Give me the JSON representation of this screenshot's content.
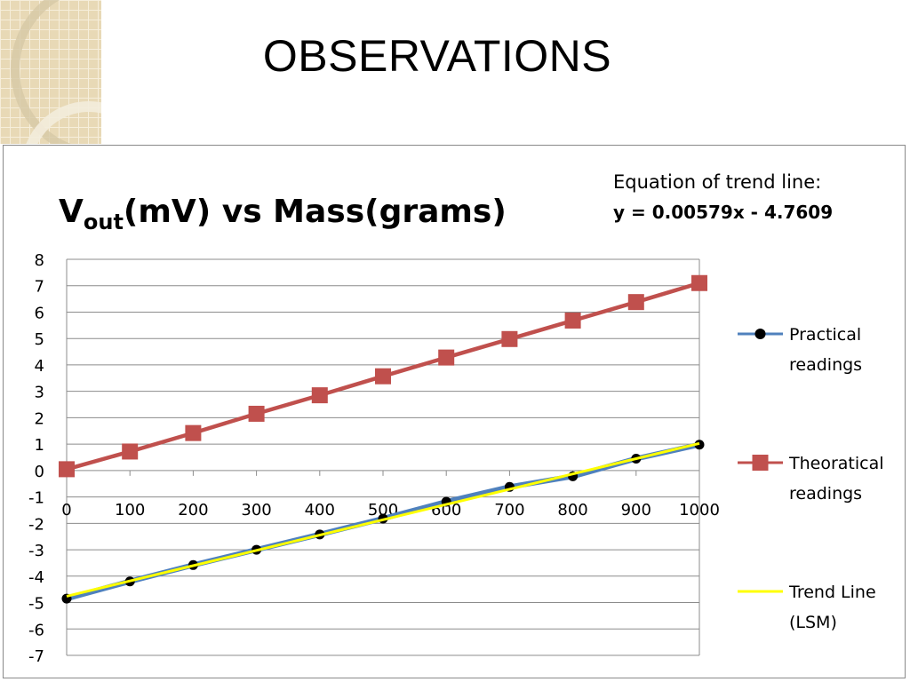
{
  "slide": {
    "title": "OBSERVATIONS"
  },
  "chart_data": {
    "type": "line",
    "title_main": "V",
    "title_sub": "out",
    "title_rest": "(mV)  vs  Mass(grams)",
    "equation": {
      "label": "Equation of trend line:",
      "formula": "y = 0.00579x - 4.7609"
    },
    "x": [
      0,
      100,
      200,
      300,
      400,
      500,
      600,
      700,
      800,
      900,
      1000
    ],
    "xlim": [
      0,
      1000
    ],
    "ylim": [
      -7,
      8
    ],
    "xticks": [
      "0",
      "100",
      "200",
      "300",
      "400",
      "500",
      "600",
      "700",
      "800",
      "900",
      "1000"
    ],
    "yticks": [
      "8",
      "7",
      "6",
      "5",
      "4",
      "3",
      "2",
      "1",
      "0",
      "-1",
      "-2",
      "-3",
      "-4",
      "-5",
      "-6",
      "-7"
    ],
    "grid": true,
    "legend_position": "right",
    "series": [
      {
        "name": "Practical readings",
        "legend_lines": [
          "Practical",
          "readings"
        ],
        "color": "#4F81BD",
        "marker": "circle",
        "marker_color": "#000000",
        "values": [
          -4.85,
          -4.2,
          -3.58,
          -3.0,
          -2.42,
          -1.82,
          -1.18,
          -0.62,
          -0.22,
          0.45,
          0.98
        ]
      },
      {
        "name": "Theoratical readings",
        "legend_lines": [
          "Theoratical",
          "readings"
        ],
        "color": "#C0504D",
        "marker": "square",
        "marker_color": "#C0504D",
        "values": [
          0.05,
          0.72,
          1.42,
          2.15,
          2.85,
          3.57,
          4.28,
          4.98,
          5.68,
          6.38,
          7.1
        ]
      },
      {
        "name": "Trend Line (LSM)",
        "legend_lines": [
          "Trend Line",
          "(LSM)"
        ],
        "color": "#FFFF00",
        "marker": "none",
        "values": [
          -4.7609,
          -4.1819,
          -3.6029,
          -3.0239,
          -2.4449,
          -1.8659,
          -1.2869,
          -0.7079,
          -0.1289,
          0.4501,
          1.0291
        ]
      }
    ]
  }
}
